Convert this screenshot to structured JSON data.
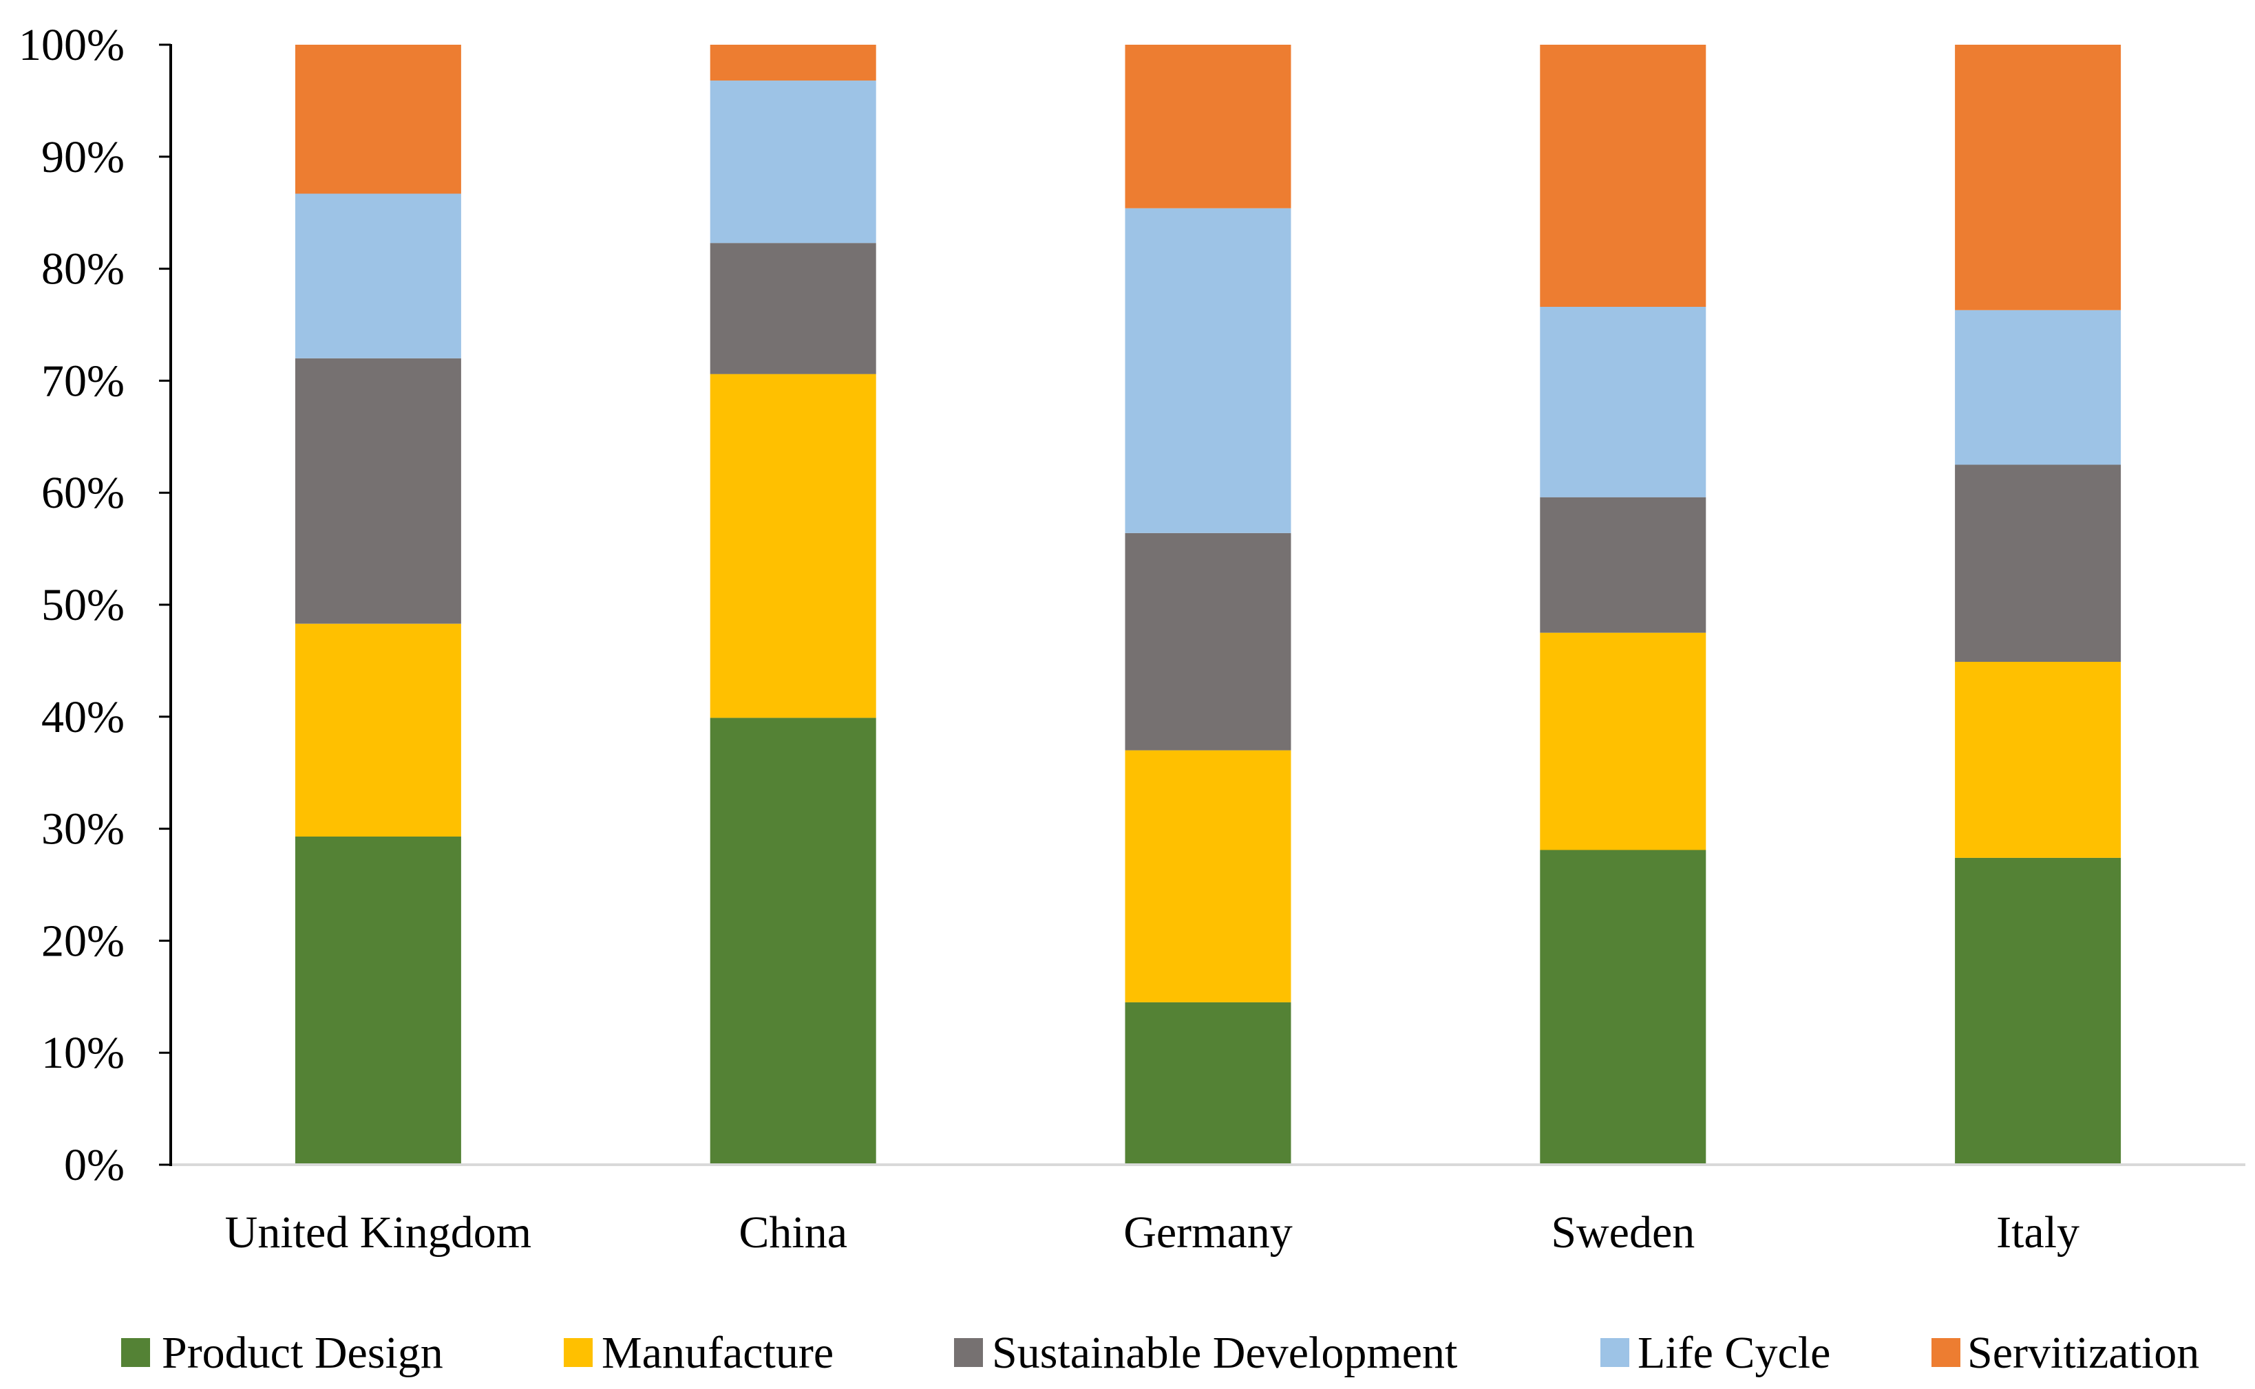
{
  "chart_data": {
    "type": "bar",
    "stacked": true,
    "title": "",
    "xlabel": "",
    "ylabel": "",
    "categories": [
      "United Kingdom",
      "China",
      "Germany",
      "Sweden",
      "Italy"
    ],
    "series": [
      {
        "name": "Product Design",
        "color": "#548235",
        "values": [
          29.3,
          39.9,
          14.5,
          28.1,
          27.4
        ]
      },
      {
        "name": "Manufacture",
        "color": "#FFC000",
        "values": [
          19.0,
          30.7,
          22.5,
          19.4,
          17.5
        ]
      },
      {
        "name": "Sustainable Development",
        "color": "#767171",
        "values": [
          23.7,
          11.7,
          19.4,
          12.1,
          17.6
        ]
      },
      {
        "name": "Life Cycle",
        "color": "#9DC3E6",
        "values": [
          14.7,
          14.5,
          29.0,
          17.0,
          13.8
        ]
      },
      {
        "name": "Servitization",
        "color": "#ED7D31",
        "values": [
          13.3,
          3.2,
          14.6,
          23.4,
          23.7
        ]
      }
    ],
    "ylim": [
      0,
      100
    ],
    "y_ticks": [
      0,
      10,
      20,
      30,
      40,
      50,
      60,
      70,
      80,
      90,
      100
    ],
    "y_tick_labels": [
      "0%",
      "10%",
      "20%",
      "30%",
      "40%",
      "50%",
      "60%",
      "70%",
      "80%",
      "90%",
      "100%"
    ],
    "legend_position": "bottom",
    "grid": false,
    "axis_color_y": "#000000",
    "axis_color_x": "#D9D9D9"
  }
}
